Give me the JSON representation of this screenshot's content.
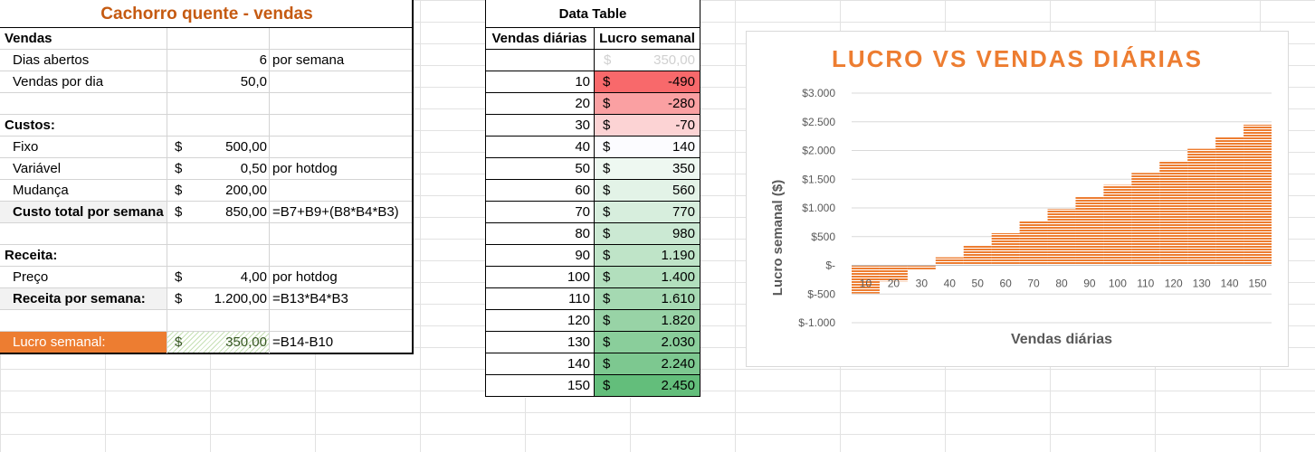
{
  "model": {
    "title": "Cachorro quente - vendas",
    "sections": {
      "vendas": "Vendas",
      "custos": "Custos:",
      "receita": "Receita:"
    },
    "rows": {
      "dias_abertos": {
        "label": "Dias abertos",
        "value": "6",
        "note": "por semana"
      },
      "vendas_dia": {
        "label": "Vendas por dia",
        "value": "50,0"
      },
      "fixo": {
        "label": "Fixo",
        "cur": "$",
        "value": "500,00"
      },
      "variavel": {
        "label": "Variável",
        "cur": "$",
        "value": "0,50",
        "note": "por hotdog"
      },
      "mudanca": {
        "label": "Mudança",
        "cur": "$",
        "value": "200,00"
      },
      "custo_total": {
        "label": "Custo total por semana",
        "cur": "$",
        "value": "850,00",
        "note": "=B7+B9+(B8*B4*B3)"
      },
      "preco": {
        "label": "Preço",
        "cur": "$",
        "value": "4,00",
        "note": "por hotdog"
      },
      "receita_semana": {
        "label": "Receita por semana:",
        "cur": "$",
        "value": "1.200,00",
        "note": "=B13*B4*B3"
      },
      "lucro": {
        "label": "Lucro semanal:",
        "cur": "$",
        "value": "350,00",
        "note": "=B14-B10"
      }
    }
  },
  "data_table": {
    "title": "Data Table",
    "headers": [
      "Vendas diárias",
      "Lucro semanal"
    ],
    "first_row": {
      "cur": "$",
      "value": "350,00"
    },
    "rows": [
      {
        "x": "10",
        "cur": "$",
        "y": "-490",
        "color": "#f8696b"
      },
      {
        "x": "20",
        "cur": "$",
        "y": "-280",
        "color": "#faa0a2"
      },
      {
        "x": "30",
        "cur": "$",
        "y": "-70",
        "color": "#fcd3d4"
      },
      {
        "x": "40",
        "cur": "$",
        "y": "140",
        "color": "#fcfcff"
      },
      {
        "x": "50",
        "cur": "$",
        "y": "350",
        "color": "#eef8f1"
      },
      {
        "x": "60",
        "cur": "$",
        "y": "560",
        "color": "#e3f3e7"
      },
      {
        "x": "70",
        "cur": "$",
        "y": "770",
        "color": "#d7eedd"
      },
      {
        "x": "80",
        "cur": "$",
        "y": "980",
        "color": "#cbe9d3"
      },
      {
        "x": "90",
        "cur": "$",
        "y": "1.190",
        "color": "#bfe4c8"
      },
      {
        "x": "100",
        "cur": "$",
        "y": "1.400",
        "color": "#b2dfbd"
      },
      {
        "x": "110",
        "cur": "$",
        "y": "1.610",
        "color": "#a5d9b2"
      },
      {
        "x": "120",
        "cur": "$",
        "y": "1.820",
        "color": "#98d3a6"
      },
      {
        "x": "130",
        "cur": "$",
        "y": "2.030",
        "color": "#8ace9b"
      },
      {
        "x": "140",
        "cur": "$",
        "y": "2.240",
        "color": "#7dc890"
      },
      {
        "x": "150",
        "cur": "$",
        "y": "2.450",
        "color": "#63be7b"
      }
    ]
  },
  "chart_data": {
    "type": "bar",
    "title": "LUCRO VS VENDAS DIÁRIAS",
    "xlabel": "Vendas diárias",
    "ylabel": "Lucro semanal ($)",
    "categories": [
      "10",
      "20",
      "30",
      "40",
      "50",
      "60",
      "70",
      "80",
      "90",
      "100",
      "110",
      "120",
      "130",
      "140",
      "150"
    ],
    "values": [
      -490,
      -280,
      -70,
      140,
      350,
      560,
      770,
      980,
      1190,
      1400,
      1610,
      1820,
      2030,
      2240,
      2450
    ],
    "ylim": [
      -1000,
      3000
    ],
    "yticks": [
      {
        "v": 3000,
        "label": "$3.000"
      },
      {
        "v": 2500,
        "label": "$2.500"
      },
      {
        "v": 2000,
        "label": "$2.000"
      },
      {
        "v": 1500,
        "label": "$1.500"
      },
      {
        "v": 1000,
        "label": "$1.000"
      },
      {
        "v": 500,
        "label": "$500"
      },
      {
        "v": 0,
        "label": "$-"
      },
      {
        "v": -500,
        "label": "$-500"
      },
      {
        "v": -1000,
        "label": "$-1.000"
      }
    ],
    "grid": true,
    "bar_color": "#ed7d31",
    "title_color": "#ed7d31"
  }
}
